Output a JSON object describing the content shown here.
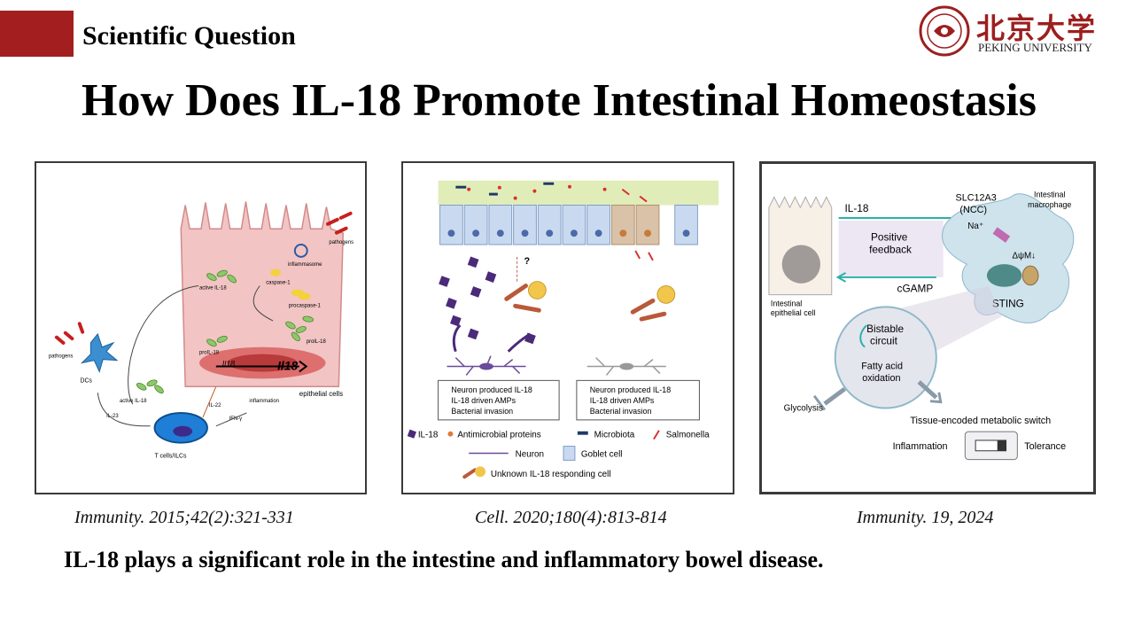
{
  "header": {
    "section_title": "Scientific Question",
    "title": "How Does IL-18 Promote Intestinal Homeostasis"
  },
  "logo": {
    "chinese_name": "北京大学",
    "english_name": "PEKING UNIVERSITY"
  },
  "colors": {
    "accent": "#a31f1f"
  },
  "panel1": {
    "pathogens_top": "pathogens",
    "inflammasome": "inflammasome",
    "caspase1": "caspase-1",
    "procaspase1": "procaspase-1",
    "active_il18_top": "active IL-18",
    "proil18_left": "proIL-18",
    "proil18_right": "proIL-18",
    "gene_small": "Il18",
    "gene_big": "Il18",
    "epithelial": "epithelial cells",
    "pathogens_left": "pathogens",
    "dcs": "DCs",
    "active_il18_bottom": "active IL-18",
    "il23": "IL-23",
    "il22": "IL-22",
    "ifn": "IFN-γ",
    "inflammation": "inflammation",
    "tcells": "T cells/ILCs"
  },
  "panel2": {
    "question": "?",
    "legend_left": [
      "Neuron produced IL-18",
      "IL-18 driven AMPs",
      "Bacterial invasion"
    ],
    "legend_right": [
      "Neuron produced IL-18",
      "IL-18 driven AMPs",
      "Bacterial invasion"
    ],
    "key_il18": "IL-18",
    "key_amp": "Antimicrobial proteins",
    "key_microbiota": "Microbiota",
    "key_salmonella": "Salmonella",
    "key_neuron": "Neuron",
    "key_goblet": "Goblet cell",
    "key_unknown": "Unknown IL-18 responding cell"
  },
  "panel3": {
    "il18": "IL-18",
    "slc": "SLC12A3",
    "ncc": "(NCC)",
    "na": "Na⁺",
    "macrophage_1": "Intestinal",
    "macrophage_2": "macrophage",
    "positive_1": "Positive",
    "positive_2": "feedback",
    "dpsi": "ΔψM↓",
    "cgamp": "cGAMP",
    "sting": "STING",
    "iec_1": "Intestinal",
    "iec_2": "epithelial cell",
    "bistable_1": "Bistable",
    "bistable_2": "circuit",
    "fao_1": "Fatty acid",
    "fao_2": "oxidation",
    "glycolysis": "Glycolysis",
    "switch": "Tissue-encoded metabolic switch",
    "inflammation": "Inflammation",
    "tolerance": "Tolerance"
  },
  "citations": [
    "Immunity. 2015;42(2):321-331",
    "Cell. 2020;180(4):813-814",
    "Immunity. 19, 2024"
  ],
  "conclusion": "IL-18 plays a significant role in the intestine and inflammatory bowel disease."
}
